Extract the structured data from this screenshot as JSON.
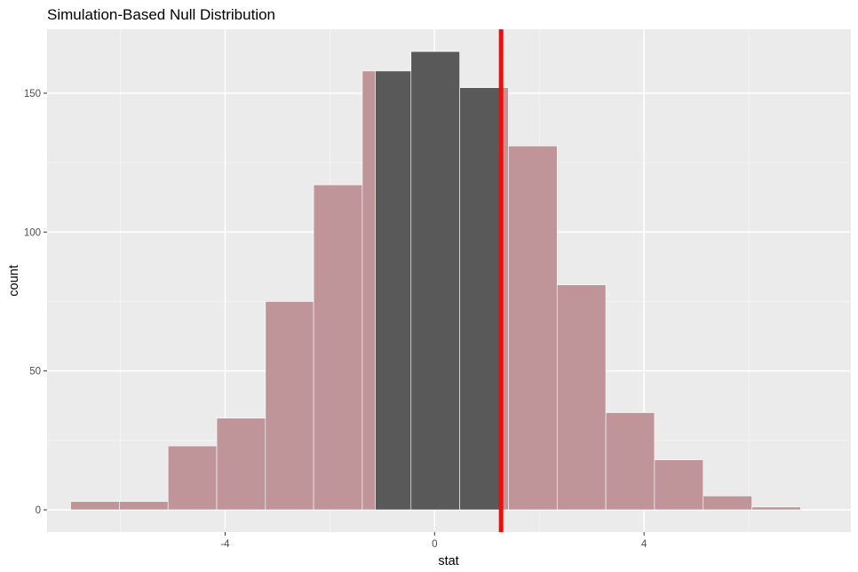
{
  "chart_data": {
    "type": "bar",
    "title": "Simulation-Based Null Distribution",
    "xlabel": "stat",
    "ylabel": "count",
    "xlim": [
      -7.4,
      7.95
    ],
    "ylim": [
      -8,
      173
    ],
    "x_ticks": [
      -4,
      0,
      4
    ],
    "x_tick_labels": [
      "-4",
      "0",
      "4"
    ],
    "y_ticks": [
      0,
      50,
      100,
      150
    ],
    "y_tick_labels": [
      "0",
      "50",
      "100",
      "150"
    ],
    "x_minor_gridlines": [
      -6,
      -2,
      2,
      6
    ],
    "y_minor_gridlines": [
      25,
      75,
      125
    ],
    "grid": true,
    "panel_background": "#ebebeb",
    "bins_edges": [
      -6.95,
      -6.02,
      -5.09,
      -4.16,
      -3.23,
      -2.31,
      -1.38,
      -0.45,
      0.48,
      1.41,
      2.34,
      3.27,
      4.2,
      5.13,
      6.06,
      6.99
    ],
    "series": [
      {
        "values": [
          3,
          3,
          23,
          33,
          75,
          117,
          158,
          165,
          152,
          131,
          81,
          35,
          18,
          5,
          1
        ],
        "color": "#bf959a"
      }
    ],
    "shaded_region": {
      "xmin": -1.13,
      "xmax": 1.27,
      "color": "#595959",
      "counts": [
        158,
        165,
        152
      ]
    },
    "vline": {
      "x": 1.27,
      "color": "#e8100e"
    }
  }
}
